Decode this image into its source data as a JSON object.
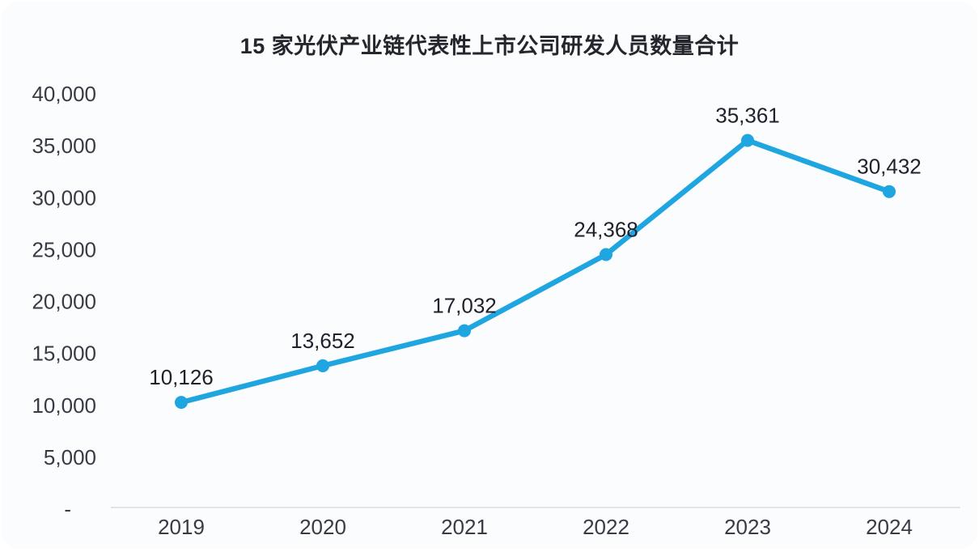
{
  "title": "15 家光伏产业链代表性上市公司研发人员数量合计",
  "colors": {
    "line": "#1fa6e0",
    "marker": "#1fa6e0",
    "axis_line": "#d9dbe3",
    "tick_text": "#3a3a45",
    "data_label_text": "#21212b",
    "title_text": "#25252d",
    "card_bg": "#fbfcfe"
  },
  "chart_data": {
    "type": "line",
    "title": "15 家光伏产业链代表性上市公司研发人员数量合计",
    "categories": [
      "2019",
      "2020",
      "2021",
      "2022",
      "2023",
      "2024"
    ],
    "values": [
      10126,
      13652,
      17032,
      24368,
      35361,
      30432
    ],
    "value_labels": [
      "10,126",
      "13,652",
      "17,032",
      "24,368",
      "35,361",
      "30,432"
    ],
    "series_name": "研发人员数量合计",
    "xlabel": "",
    "ylabel": "",
    "ylim": [
      0,
      40000
    ],
    "ytick_step": 5000,
    "ytick_labels": [
      "-",
      "5,000",
      "10,000",
      "15,000",
      "20,000",
      "25,000",
      "30,000",
      "35,000",
      "40,000"
    ],
    "grid": false,
    "legend": "none",
    "marker": "circle"
  }
}
